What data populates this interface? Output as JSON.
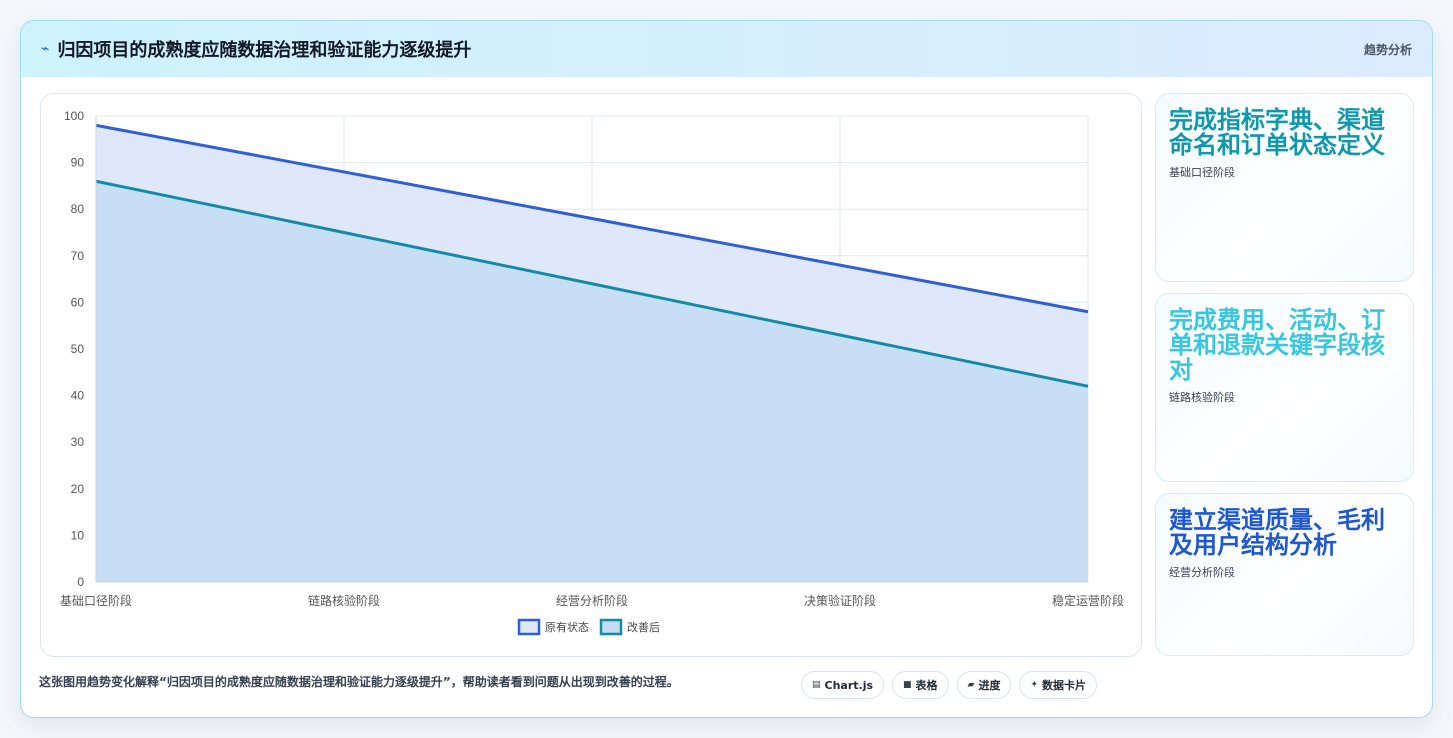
{
  "header": {
    "icon": "trend-line-icon",
    "title": "归因项目的成熟度应随数据治理和验证能力逐级提升",
    "tag": "趋势分析"
  },
  "chart_data": {
    "type": "area",
    "categories": [
      "基础口径阶段",
      "链路核验阶段",
      "经营分析阶段",
      "决策验证阶段",
      "稳定运营阶段"
    ],
    "series": [
      {
        "name": "原有状态",
        "values": [
          98,
          88,
          78,
          68,
          58
        ],
        "color": "#2f5fd7",
        "fill": "#dfe8fb"
      },
      {
        "name": "改善后",
        "values": [
          86,
          75,
          64,
          53,
          42
        ],
        "color": "#138ba6",
        "fill": "#c4dcf2"
      }
    ],
    "ylim": [
      0,
      100
    ],
    "yticks": [
      0,
      10,
      20,
      30,
      40,
      50,
      60,
      70,
      80,
      90,
      100
    ],
    "grid": true,
    "legend": "bottom"
  },
  "side_cards": [
    {
      "big": "完成指标字典、渠道命名和订单状态定义",
      "small": "基础口径阶段",
      "color": "#0f97ab"
    },
    {
      "big": "完成费用、活动、订单和退款关键字段核对",
      "small": "链路核验阶段",
      "color": "#37c6de"
    },
    {
      "big": "建立渠道质量、毛利及用户结构分析",
      "small": "经营分析阶段",
      "color": "#1e57cf"
    }
  ],
  "footer": {
    "text": "这张图用趋势变化解释“归因项目的成熟度应随数据治理和验证能力逐级提升”，帮助读者看到问题从出现到改善的过程。",
    "chips": [
      {
        "icon": "chart-icon",
        "glyph": "▤",
        "label": "Chart.js"
      },
      {
        "icon": "table-icon",
        "glyph": "■",
        "label": "表格"
      },
      {
        "icon": "progress-icon",
        "glyph": "▰",
        "label": "进度"
      },
      {
        "icon": "sparkle-icon",
        "glyph": "✦",
        "label": "数据卡片"
      }
    ]
  }
}
